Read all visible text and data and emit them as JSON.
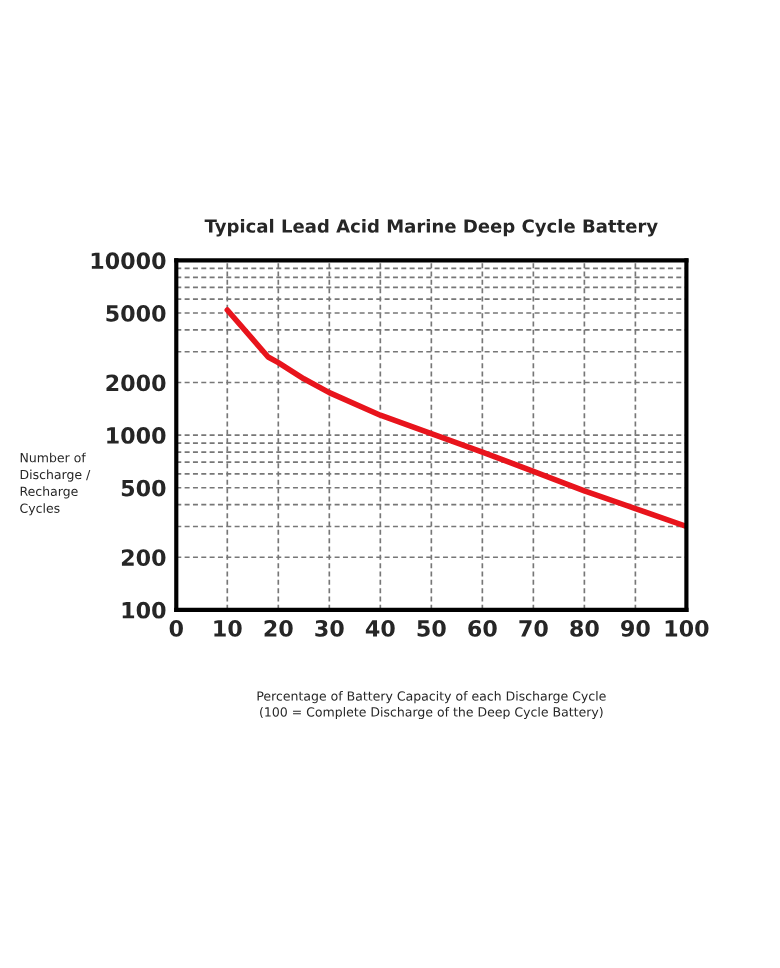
{
  "chart_data": {
    "type": "line",
    "title": "Typical Lead Acid Marine Deep Cycle Battery",
    "xlabel": "Percentage of Battery Capacity of each Discharge Cycle\n(100 = Complete Discharge of the Deep Cycle Battery)",
    "ylabel": "Number of\nDischarge /\nRecharge\nCycles",
    "series": [
      {
        "color": "#e8141c",
        "x": [
          10,
          18,
          20,
          25,
          30,
          40,
          50,
          60,
          70,
          80,
          90,
          100
        ],
        "values": [
          5200,
          2800,
          2600,
          2100,
          1750,
          1300,
          1020,
          800,
          620,
          480,
          380,
          300
        ]
      }
    ],
    "log": "y",
    "xlim": [
      0,
      100
    ],
    "xticks": [
      0,
      10,
      20,
      30,
      40,
      50,
      60,
      70,
      80,
      90,
      100
    ],
    "ylim": [
      100,
      10000
    ],
    "yticks": [
      100,
      200,
      500,
      1000,
      2000,
      5000,
      10000
    ],
    "grid": true,
    "marker": "none",
    "line_style": "solid"
  }
}
